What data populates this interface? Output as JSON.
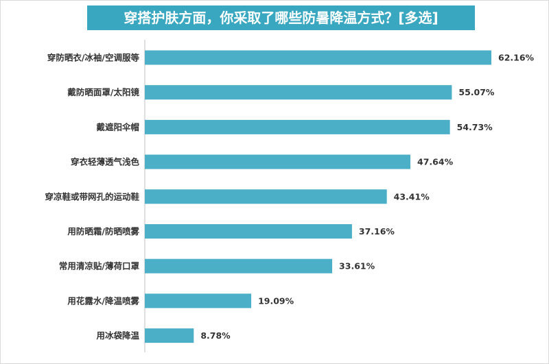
{
  "chart_data": {
    "type": "bar",
    "orientation": "horizontal",
    "title": "穿搭护肤方面，你采取了哪些防暑降温方式？[多选]",
    "categories": [
      "穿防晒衣/冰袖/空调服等",
      "戴防晒面罩/太阳镜",
      "戴遮阳伞帽",
      "穿衣轻薄透气浅色",
      "穿凉鞋或带网孔的运动鞋",
      "用防晒霜/防晒喷雾",
      "常用清凉贴/薄荷口罩",
      "用花露水/降温喷雾",
      "用冰袋降温"
    ],
    "values": [
      62.16,
      55.07,
      54.73,
      47.64,
      43.41,
      37.16,
      33.61,
      19.09,
      8.78
    ],
    "value_labels": [
      "62.16%",
      "55.07%",
      "54.73%",
      "47.64%",
      "43.41%",
      "37.16%",
      "33.61%",
      "19.09%",
      "8.78%"
    ],
    "unit": "%",
    "xlim": [
      0,
      62.16
    ],
    "grid": false,
    "bar_color": "#4aafc7",
    "title_background": "#3aa7c0"
  }
}
